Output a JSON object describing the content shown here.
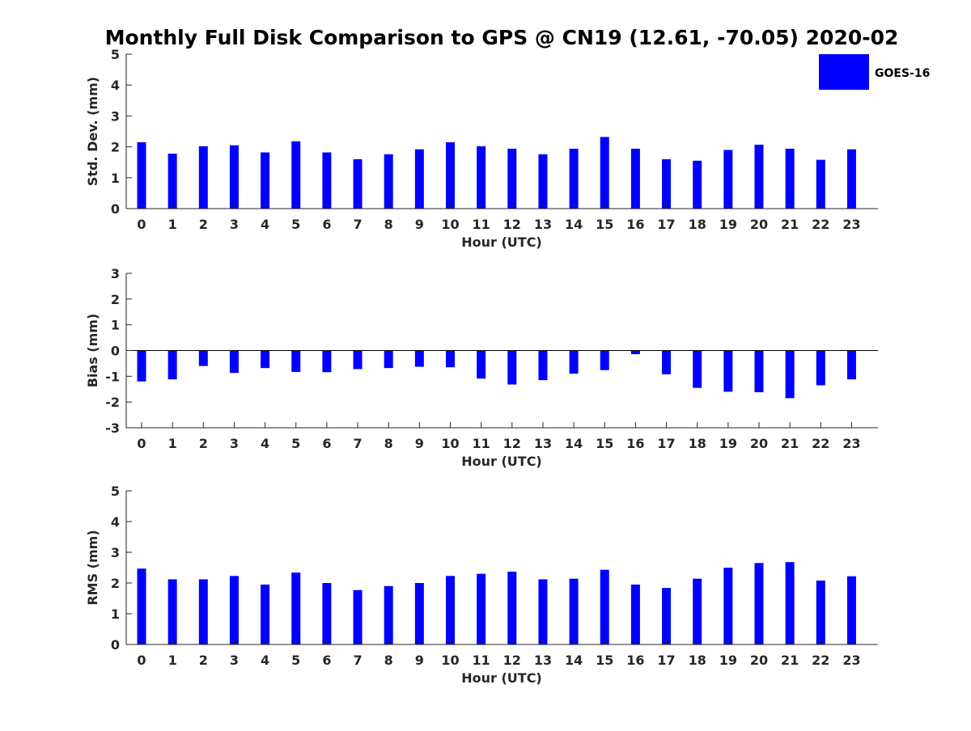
{
  "chart_title": "Monthly Full Disk Comparison to GPS @ CN19 (12.61, -70.05) 2020-02",
  "legend": {
    "label": "GOES-16",
    "color": "#0000ff"
  },
  "chart_data": [
    {
      "type": "bar",
      "title": "Monthly Full Disk Comparison to GPS @ CN19 (12.61, -70.05) 2020-02",
      "xlabel": "Hour (UTC)",
      "ylabel": "Std. Dev. (mm)",
      "categories": [
        "0",
        "1",
        "2",
        "3",
        "4",
        "5",
        "6",
        "7",
        "8",
        "9",
        "10",
        "11",
        "12",
        "13",
        "14",
        "15",
        "16",
        "17",
        "18",
        "19",
        "20",
        "21",
        "22",
        "23"
      ],
      "series": [
        {
          "name": "GOES-16",
          "values": [
            2.15,
            1.78,
            2.02,
            2.05,
            1.82,
            2.18,
            1.82,
            1.6,
            1.76,
            1.92,
            2.15,
            2.02,
            1.94,
            1.76,
            1.94,
            2.32,
            1.94,
            1.6,
            1.55,
            1.9,
            2.07,
            1.94,
            1.58,
            1.92
          ]
        }
      ],
      "ylim": [
        0,
        5
      ],
      "yticks": [
        "0",
        "1",
        "2",
        "3",
        "4",
        "5"
      ]
    },
    {
      "type": "bar",
      "xlabel": "Hour (UTC)",
      "ylabel": "Bias (mm)",
      "categories": [
        "0",
        "1",
        "2",
        "3",
        "4",
        "5",
        "6",
        "7",
        "8",
        "9",
        "10",
        "11",
        "12",
        "13",
        "14",
        "15",
        "16",
        "17",
        "18",
        "19",
        "20",
        "21",
        "22",
        "23"
      ],
      "series": [
        {
          "name": "GOES-16",
          "values": [
            -1.2,
            -1.12,
            -0.6,
            -0.87,
            -0.68,
            -0.83,
            -0.84,
            -0.72,
            -0.68,
            -0.63,
            -0.65,
            -1.09,
            -1.32,
            -1.15,
            -0.9,
            -0.76,
            -0.14,
            -0.92,
            -1.45,
            -1.6,
            -1.62,
            -1.85,
            -1.35,
            -1.12
          ]
        }
      ],
      "ylim": [
        -3,
        3
      ],
      "yticks": [
        "-3",
        "-2",
        "-1",
        "0",
        "1",
        "2",
        "3"
      ]
    },
    {
      "type": "bar",
      "xlabel": "Hour (UTC)",
      "ylabel": "RMS (mm)",
      "categories": [
        "0",
        "1",
        "2",
        "3",
        "4",
        "5",
        "6",
        "7",
        "8",
        "9",
        "10",
        "11",
        "12",
        "13",
        "14",
        "15",
        "16",
        "17",
        "18",
        "19",
        "20",
        "21",
        "22",
        "23"
      ],
      "series": [
        {
          "name": "GOES-16",
          "values": [
            2.47,
            2.12,
            2.12,
            2.23,
            1.95,
            2.34,
            2.0,
            1.77,
            1.9,
            2.0,
            2.23,
            2.3,
            2.37,
            2.12,
            2.14,
            2.43,
            1.95,
            1.84,
            2.14,
            2.5,
            2.65,
            2.68,
            2.08,
            2.22
          ]
        }
      ],
      "ylim": [
        0,
        5
      ],
      "yticks": [
        "0",
        "1",
        "2",
        "3",
        "4",
        "5"
      ]
    }
  ]
}
